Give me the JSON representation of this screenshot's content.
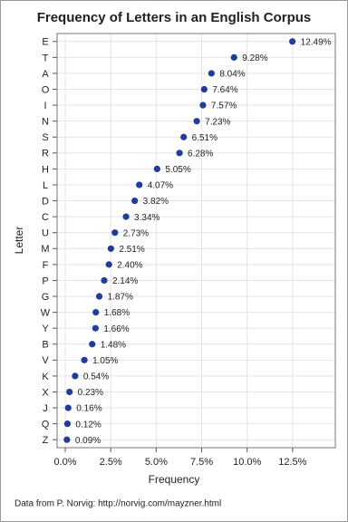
{
  "chart_data": {
    "type": "dot",
    "title": "Frequency of Letters in an English Corpus",
    "x_label": "Frequency",
    "y_label": "Letter",
    "footnote": "Data from P. Norvig: http://norvig.com/mayzner.html",
    "categories": [
      "E",
      "T",
      "A",
      "O",
      "I",
      "N",
      "S",
      "R",
      "H",
      "L",
      "D",
      "C",
      "U",
      "M",
      "F",
      "P",
      "G",
      "W",
      "Y",
      "B",
      "V",
      "K",
      "X",
      "J",
      "Q",
      "Z"
    ],
    "values": [
      12.49,
      9.28,
      8.04,
      7.64,
      7.57,
      7.23,
      6.51,
      6.28,
      5.05,
      4.07,
      3.82,
      3.34,
      2.73,
      2.51,
      2.4,
      2.14,
      1.87,
      1.68,
      1.66,
      1.48,
      1.05,
      0.54,
      0.23,
      0.16,
      0.12,
      0.09
    ],
    "value_labels": [
      "12.49%",
      "9.28%",
      "8.04%",
      "7.64%",
      "7.57%",
      "7.23%",
      "6.51%",
      "6.28%",
      "5.05%",
      "4.07%",
      "3.82%",
      "3.34%",
      "2.73%",
      "2.51%",
      "2.40%",
      "2.14%",
      "1.87%",
      "1.68%",
      "1.66%",
      "1.48%",
      "1.05%",
      "0.54%",
      "0.23%",
      "0.16%",
      "0.12%",
      "0.09%"
    ],
    "color": "#1f3d99",
    "xlim": [
      -0.45,
      14.85
    ],
    "xticks": [
      {
        "value": 0,
        "label": "0.0%"
      },
      {
        "value": 2.5,
        "label": "2.5%"
      },
      {
        "value": 5,
        "label": "5.0%"
      },
      {
        "value": 7.5,
        "label": "7.5%"
      },
      {
        "value": 10,
        "label": "10.0%"
      },
      {
        "value": 12.5,
        "label": "12.5%"
      }
    ],
    "grid": true
  }
}
